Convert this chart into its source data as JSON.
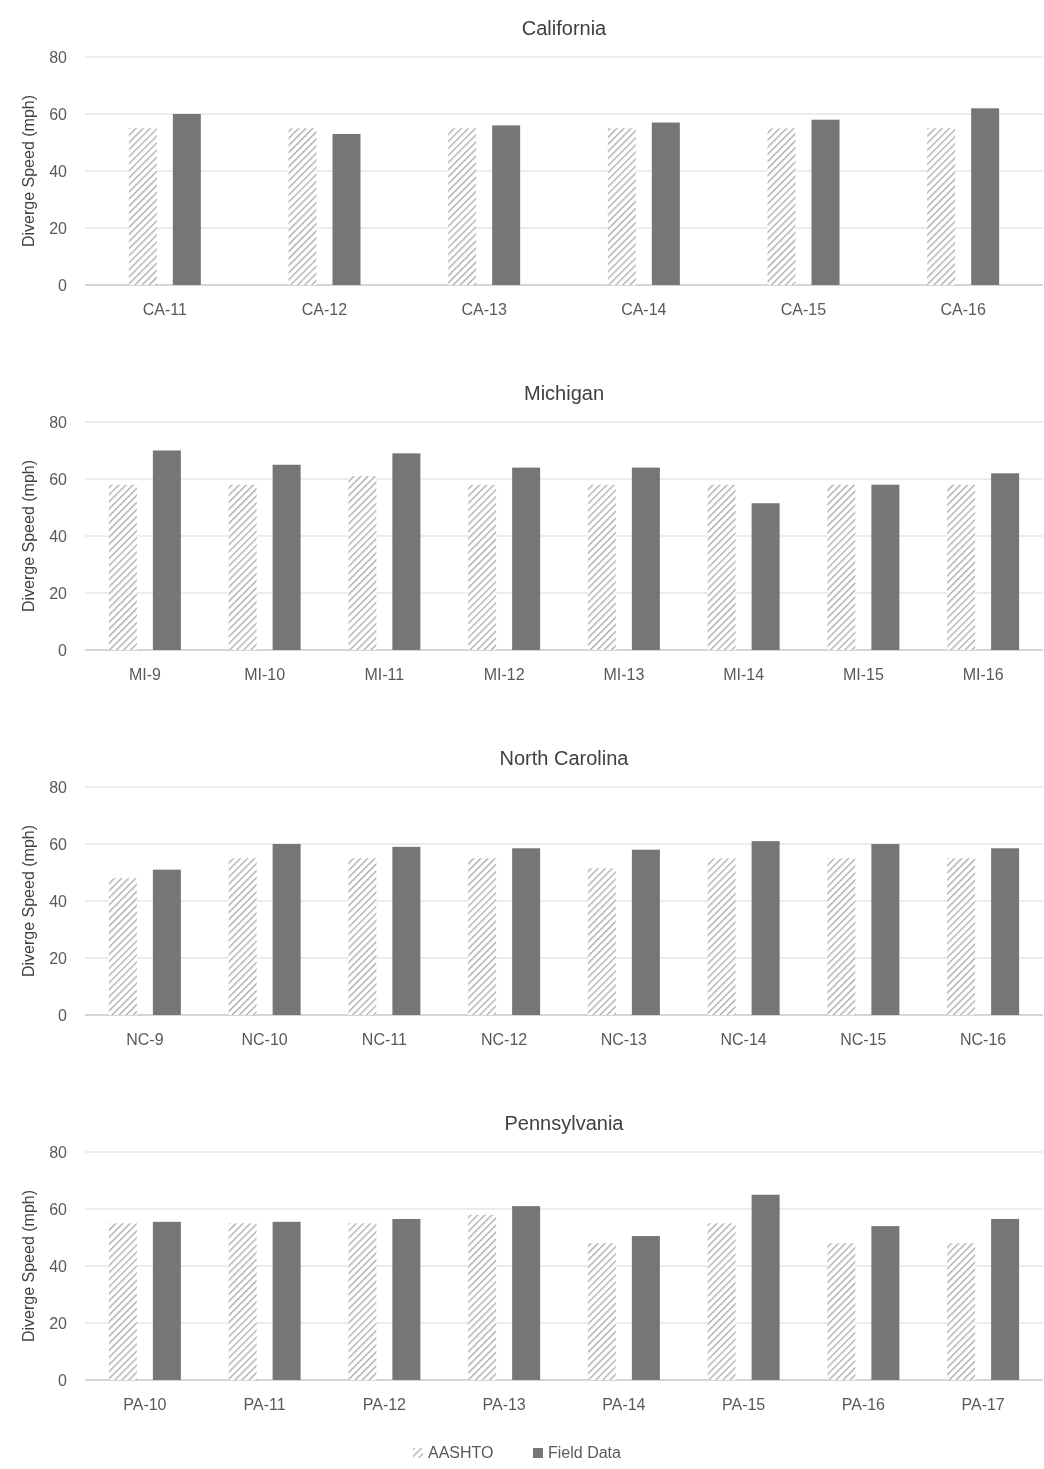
{
  "chart_data": [
    {
      "type": "bar",
      "title": "California",
      "ylabel": "Diverge Speed (mph)",
      "categories": [
        "CA-11",
        "CA-12",
        "CA-13",
        "CA-14",
        "CA-15",
        "CA-16"
      ],
      "series": [
        {
          "color": "#a6a6a6",
          "values": [
            55,
            55,
            55,
            55,
            55,
            55
          ]
        },
        {
          "color": "#767676",
          "values": [
            60,
            53,
            56,
            57,
            58,
            62
          ]
        }
      ],
      "ylim": [
        0,
        80
      ],
      "yticks": [
        0,
        20,
        40,
        60,
        80
      ],
      "grid": "y"
    },
    {
      "type": "bar",
      "title": "Michigan",
      "ylabel": "Diverge Speed (mph)",
      "categories": [
        "MI-9",
        "MI-10",
        "MI-11",
        "MI-12",
        "MI-13",
        "MI-14",
        "MI-15",
        "MI-16"
      ],
      "series": [
        {
          "color": "#a6a6a6",
          "values": [
            58,
            58,
            61,
            58,
            58,
            58,
            58,
            58
          ]
        },
        {
          "color": "#767676",
          "values": [
            70,
            65,
            69,
            64,
            64,
            51.5,
            58,
            62
          ]
        }
      ],
      "ylim": [
        0,
        80
      ],
      "yticks": [
        0,
        20,
        40,
        60,
        80
      ],
      "grid": "y"
    },
    {
      "type": "bar",
      "title": "North Carolina",
      "ylabel": "Diverge Speed (mph)",
      "categories": [
        "NC-9",
        "NC-10",
        "NC-11",
        "NC-12",
        "NC-13",
        "NC-14",
        "NC-15",
        "NC-16"
      ],
      "series": [
        {
          "color": "#a6a6a6",
          "values": [
            48,
            55,
            55,
            55,
            51.5,
            55,
            55,
            55
          ]
        },
        {
          "color": "#767676",
          "values": [
            51,
            60,
            59,
            58.5,
            58,
            61,
            60,
            58.5
          ]
        }
      ],
      "ylim": [
        0,
        80
      ],
      "yticks": [
        0,
        20,
        40,
        60,
        80
      ],
      "grid": "y"
    },
    {
      "type": "bar",
      "title": "Pennsylvania",
      "ylabel": "Diverge Speed (mph)",
      "categories": [
        "PA-10",
        "PA-11",
        "PA-12",
        "PA-13",
        "PA-14",
        "PA-15",
        "PA-16",
        "PA-17"
      ],
      "series": [
        {
          "name": "AASHTO",
          "color": "#a6a6a6",
          "values": [
            55,
            55,
            55,
            58,
            48,
            55,
            48,
            48
          ]
        },
        {
          "name": "Field Data",
          "color": "#767676",
          "values": [
            55.5,
            55.5,
            56.5,
            61,
            50.5,
            65,
            54,
            56.5
          ]
        }
      ],
      "ylim": [
        0,
        80
      ],
      "yticks": [
        0,
        20,
        40,
        60,
        80
      ],
      "grid": "y",
      "legend": "bottom"
    }
  ]
}
